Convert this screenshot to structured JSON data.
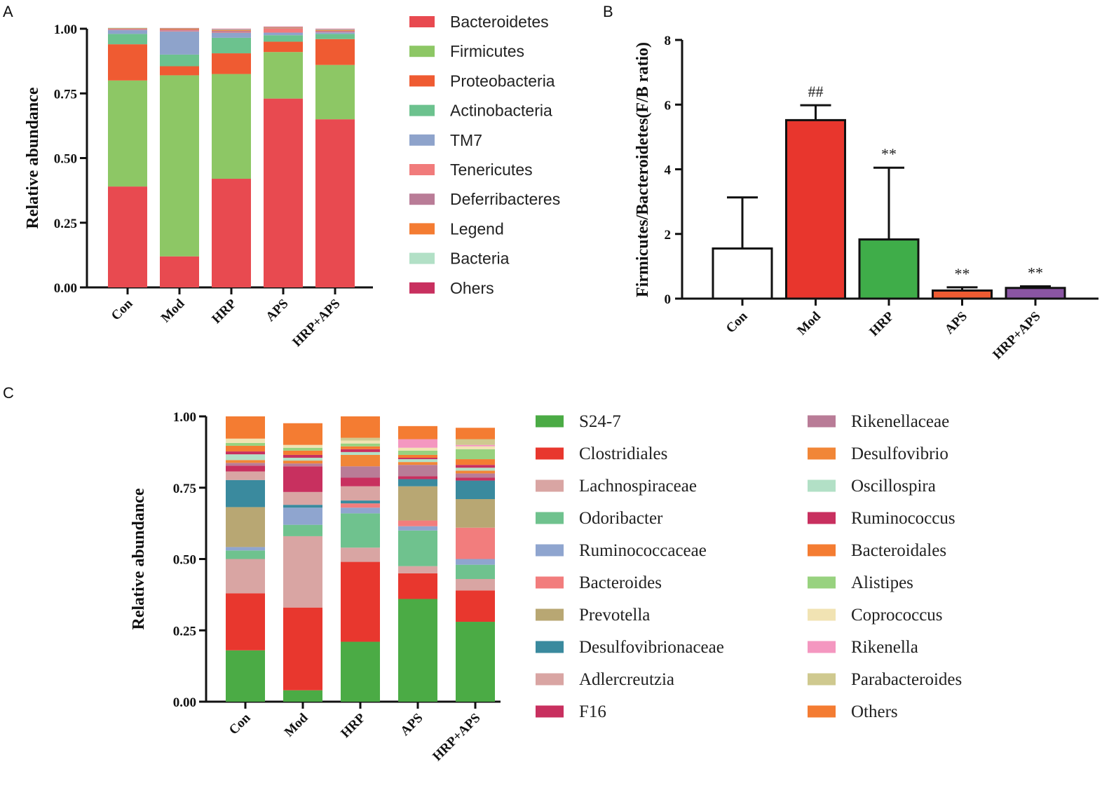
{
  "panels": {
    "a": "A",
    "b": "B",
    "c": "C"
  },
  "chart_data": [
    {
      "type": "bar",
      "stacked": true,
      "title": "",
      "xlabel": "",
      "ylabel": "Relative abundance",
      "ylim": [
        0,
        1
      ],
      "yticks": [
        "0.00",
        "0.25",
        "0.50",
        "0.75",
        "1.00"
      ],
      "categories": [
        "Con",
        "Mod",
        "HRP",
        "APS",
        "HRP+APS"
      ],
      "series": [
        {
          "name": "Bacteroidetes",
          "color": "#e84a50",
          "values": [
            0.39,
            0.12,
            0.42,
            0.73,
            0.65
          ]
        },
        {
          "name": "Firmicutes",
          "color": "#8dc765",
          "values": [
            0.41,
            0.7,
            0.405,
            0.18,
            0.21
          ]
        },
        {
          "name": "Proteobacteria",
          "color": "#ef5b32",
          "values": [
            0.14,
            0.035,
            0.08,
            0.04,
            0.1
          ]
        },
        {
          "name": "Actinobacteria",
          "color": "#6cc28e",
          "values": [
            0.04,
            0.045,
            0.06,
            0.025,
            0.02
          ]
        },
        {
          "name": "TM7",
          "color": "#8ea3cb",
          "values": [
            0.015,
            0.09,
            0.02,
            0.01,
            0.006
          ]
        },
        {
          "name": "Tenericutes",
          "color": "#f17b7b",
          "values": [
            0.002,
            0.003,
            0.003,
            0.015,
            0.002
          ]
        },
        {
          "name": "Deferribacteres",
          "color": "#b97c97",
          "values": [
            0.003,
            0.004,
            0.004,
            0.002,
            0.004
          ]
        },
        {
          "name": "Legend",
          "color": "#f47c32",
          "values": [
            0.002,
            0.003,
            0.003,
            0.002,
            0.003
          ]
        },
        {
          "name": "Bacteria",
          "color": "#b2e0c6",
          "values": [
            0.002,
            0.002,
            0.003,
            0.002,
            0.003
          ]
        },
        {
          "name": "Ohers",
          "color": "#c8305f",
          "values": [
            0.0,
            0.001,
            0.002,
            0.002,
            0.002
          ]
        }
      ]
    },
    {
      "type": "bar",
      "title": "",
      "xlabel": "",
      "ylabel": "Firmicutes/Bacteroidetes(F/B ratio)",
      "ylim": [
        0,
        8
      ],
      "yticks": [
        "0",
        "2",
        "4",
        "6",
        "8"
      ],
      "categories": [
        "Con",
        "Mod",
        "HRP",
        "APS",
        "HRP+APS"
      ],
      "values": [
        1.55,
        5.52,
        1.83,
        0.25,
        0.33
      ],
      "errors": [
        1.58,
        0.46,
        2.22,
        0.1,
        0.05
      ],
      "colors": [
        "#ffffff",
        "#e8362d",
        "#3fad49",
        "#ef5b32",
        "#8a55a3"
      ],
      "annotations": [
        "",
        "##",
        "**",
        "**",
        "**"
      ]
    },
    {
      "type": "bar",
      "stacked": true,
      "title": "",
      "xlabel": "",
      "ylabel": "Relative abundance",
      "ylim": [
        0,
        1
      ],
      "yticks": [
        "0.00",
        "0.25",
        "0.50",
        "0.75",
        "1.00"
      ],
      "categories": [
        "Con",
        "Mod",
        "HRP",
        "APS",
        "HRP+APS"
      ],
      "series": [
        {
          "name": "S24-7",
          "color": "#4bab45",
          "values": [
            0.18,
            0.04,
            0.21,
            0.36,
            0.28
          ]
        },
        {
          "name": "Clostridiales",
          "color": "#e8372e",
          "values": [
            0.2,
            0.29,
            0.28,
            0.09,
            0.11
          ]
        },
        {
          "name": "Lachnospiraceae",
          "color": "#d9a5a3",
          "values": [
            0.12,
            0.25,
            0.05,
            0.025,
            0.04
          ]
        },
        {
          "name": "Odoribacter",
          "color": "#6fc28e",
          "values": [
            0.03,
            0.04,
            0.12,
            0.125,
            0.05
          ]
        },
        {
          "name": "Ruminococcaceae",
          "color": "#8fa5cf",
          "values": [
            0.012,
            0.06,
            0.02,
            0.015,
            0.02
          ]
        },
        {
          "name": "Bacteroides",
          "color": "#f27d7d",
          "values": [
            0.0,
            0.0,
            0.015,
            0.02,
            0.11
          ]
        },
        {
          "name": "Prevotella",
          "color": "#b8a773",
          "values": [
            0.14,
            0.0,
            0.0,
            0.12,
            0.1
          ]
        },
        {
          "name": "Desulfovibrionaceae",
          "color": "#3a8a9e",
          "values": [
            0.095,
            0.01,
            0.01,
            0.025,
            0.065
          ]
        },
        {
          "name": "Adlercreutzia",
          "color": "#d9a5a3",
          "values": [
            0.03,
            0.045,
            0.05,
            0.0,
            0.0
          ]
        },
        {
          "name": "F16",
          "color": "#c8305f",
          "values": [
            0.02,
            0.09,
            0.03,
            0.01,
            0.01
          ]
        },
        {
          "name": "Rikenellaceae",
          "color": "#b97c97",
          "values": [
            0.01,
            0.01,
            0.04,
            0.04,
            0.015
          ]
        },
        {
          "name": "Desulfovibrio",
          "color": "#f18637",
          "values": [
            0.01,
            0.01,
            0.04,
            0.01,
            0.01
          ]
        },
        {
          "name": "Oscillospira",
          "color": "#b2e0c6",
          "values": [
            0.02,
            0.01,
            0.01,
            0.01,
            0.01
          ]
        },
        {
          "name": "Ruminococcus",
          "color": "#c8305f",
          "values": [
            0.01,
            0.01,
            0.01,
            0.005,
            0.01
          ]
        },
        {
          "name": "Bacteroidales",
          "color": "#f47c32",
          "values": [
            0.02,
            0.015,
            0.01,
            0.01,
            0.02
          ]
        },
        {
          "name": "Alistipes",
          "color": "#98d27f",
          "values": [
            0.01,
            0.01,
            0.01,
            0.015,
            0.035
          ]
        },
        {
          "name": "Coprococcus",
          "color": "#f1e3b3",
          "values": [
            0.015,
            0.01,
            0.01,
            0.01,
            0.01
          ]
        },
        {
          "name": "Rikenella",
          "color": "#f497c0",
          "values": [
            0.0,
            0.0,
            0.0,
            0.03,
            0.005
          ]
        },
        {
          "name": "Parabacteroides",
          "color": "#cfc98f",
          "values": [
            0.0,
            0.0,
            0.01,
            0.0,
            0.02
          ]
        },
        {
          "name": "Others",
          "color": "#f47c32",
          "values": [
            0.078,
            0.076,
            0.075,
            0.046,
            0.04
          ]
        }
      ]
    }
  ]
}
